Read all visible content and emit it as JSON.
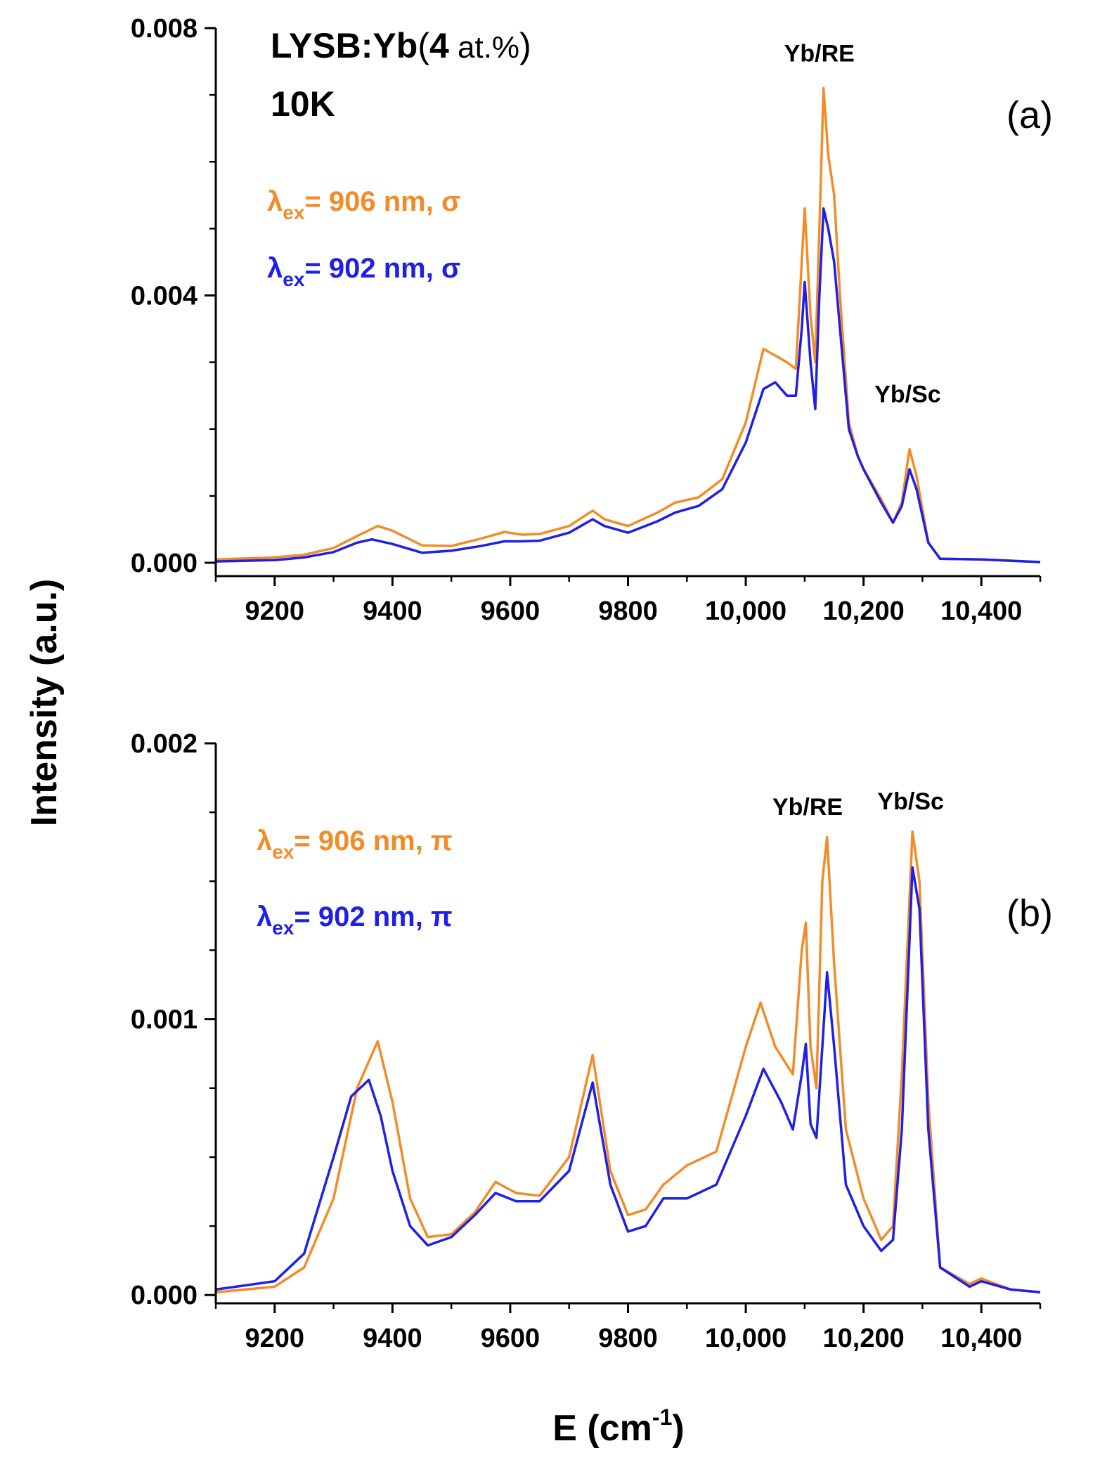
{
  "colors": {
    "orange": "#F28C28",
    "blue": "#1F1FE6",
    "axis": "#000000"
  },
  "figure": {
    "ylabel": "Intensity (a.u.)",
    "xlabel_base": "E (cm",
    "xlabel_sup": "-1",
    "xlabel_close": ")"
  },
  "panels": {
    "a": {
      "tag": "(a)",
      "sample": {
        "name": "LYSB:Yb",
        "conc_open": "(",
        "conc_value": "4",
        "conc_unit": " at.%",
        "conc_close": ")",
        "temperature": "10K"
      },
      "legend": [
        {
          "prefix": "λ",
          "sub": "ex",
          "text": "= 906 nm, σ",
          "color_key": "orange"
        },
        {
          "prefix": "λ",
          "sub": "ex",
          "text": "= 902 nm, σ",
          "color_key": "blue"
        }
      ],
      "peak_labels": [
        {
          "text": "Yb/RE",
          "x": 10125,
          "y": 0.0075
        },
        {
          "text": "Yb/Sc",
          "x": 10275,
          "y": 0.0024
        }
      ]
    },
    "b": {
      "tag": "(b)",
      "legend": [
        {
          "prefix": "λ",
          "sub": "ex",
          "text": "= 906 nm, π",
          "color_key": "orange"
        },
        {
          "prefix": "λ",
          "sub": "ex",
          "text": "= 902 nm, π",
          "color_key": "blue"
        }
      ],
      "peak_labels": [
        {
          "text": "Yb/RE",
          "x": 10105,
          "y": 0.00174
        },
        {
          "text": "Yb/Sc",
          "x": 10280,
          "y": 0.00176
        }
      ]
    }
  },
  "chart_data": [
    {
      "panel": "a",
      "type": "line",
      "title": "",
      "xlabel": "E (cm-1)",
      "ylabel": "Intensity (a.u.)",
      "xlim": [
        9100,
        10500
      ],
      "ylim": [
        -0.0002,
        0.008
      ],
      "xticks": [
        9200,
        9400,
        9600,
        9800,
        10000,
        10200,
        10400
      ],
      "xtick_labels": [
        "9200",
        "9400",
        "9600",
        "9800",
        "10,000",
        "10,200",
        "10,400"
      ],
      "yticks": [
        0.0,
        0.004,
        0.008
      ],
      "ytick_labels": [
        "0.000",
        "0.004",
        "0.008"
      ],
      "series": [
        {
          "name": "λex= 906 nm, σ",
          "color_key": "orange",
          "x": [
            9100,
            9200,
            9250,
            9300,
            9340,
            9375,
            9400,
            9450,
            9500,
            9550,
            9590,
            9620,
            9650,
            9700,
            9740,
            9760,
            9800,
            9850,
            9880,
            9920,
            9960,
            10000,
            10030,
            10050,
            10070,
            10085,
            10095,
            10100,
            10110,
            10118,
            10125,
            10132,
            10140,
            10150,
            10160,
            10175,
            10190,
            10200,
            10230,
            10250,
            10265,
            10278,
            10290,
            10310,
            10330,
            10400,
            10450,
            10500
          ],
          "values": [
            5e-05,
            8e-05,
            0.00012,
            0.00022,
            0.0004,
            0.00055,
            0.00048,
            0.00026,
            0.00025,
            0.00036,
            0.00046,
            0.00042,
            0.00043,
            0.00055,
            0.00078,
            0.00065,
            0.00055,
            0.00075,
            0.0009,
            0.00098,
            0.00125,
            0.0021,
            0.0032,
            0.0031,
            0.003,
            0.0029,
            0.0045,
            0.0053,
            0.0037,
            0.003,
            0.005,
            0.0071,
            0.0061,
            0.0055,
            0.004,
            0.0021,
            0.0016,
            0.0014,
            0.00095,
            0.0006,
            0.0009,
            0.0017,
            0.0013,
            0.0003,
            6e-05,
            5e-05,
            3e-05,
            1e-05
          ]
        },
        {
          "name": "λex= 902 nm, σ",
          "color_key": "blue",
          "x": [
            9100,
            9200,
            9250,
            9300,
            9340,
            9365,
            9400,
            9450,
            9500,
            9550,
            9590,
            9620,
            9650,
            9700,
            9740,
            9760,
            9800,
            9850,
            9880,
            9920,
            9960,
            10000,
            10030,
            10050,
            10070,
            10085,
            10095,
            10100,
            10110,
            10118,
            10125,
            10132,
            10140,
            10150,
            10160,
            10175,
            10190,
            10200,
            10230,
            10250,
            10265,
            10278,
            10290,
            10310,
            10330,
            10400,
            10450,
            10500
          ],
          "values": [
            2e-05,
            4e-05,
            8e-05,
            0.00016,
            0.0003,
            0.00035,
            0.00028,
            0.00015,
            0.00018,
            0.00025,
            0.00032,
            0.00032,
            0.00033,
            0.00045,
            0.00065,
            0.00055,
            0.00045,
            0.00062,
            0.00075,
            0.00085,
            0.0011,
            0.0018,
            0.0026,
            0.0027,
            0.0025,
            0.0025,
            0.0035,
            0.0042,
            0.003,
            0.0023,
            0.004,
            0.0053,
            0.005,
            0.0045,
            0.0035,
            0.002,
            0.0016,
            0.0014,
            0.0009,
            0.0006,
            0.00085,
            0.0014,
            0.0011,
            0.0003,
            6e-05,
            5e-05,
            3e-05,
            1e-05
          ]
        }
      ]
    },
    {
      "panel": "b",
      "type": "line",
      "title": "",
      "xlabel": "E (cm-1)",
      "ylabel": "Intensity (a.u.)",
      "xlim": [
        9100,
        10500
      ],
      "ylim": [
        -3e-05,
        0.002
      ],
      "xticks": [
        9200,
        9400,
        9600,
        9800,
        10000,
        10200,
        10400
      ],
      "xtick_labels": [
        "9200",
        "9400",
        "9600",
        "9800",
        "10,000",
        "10,200",
        "10,400"
      ],
      "yticks": [
        0.0,
        0.001,
        0.002
      ],
      "ytick_labels": [
        "0.000",
        "0.001",
        "0.002"
      ],
      "series": [
        {
          "name": "λex= 906 nm, π",
          "color_key": "orange",
          "x": [
            9100,
            9200,
            9250,
            9300,
            9340,
            9375,
            9400,
            9430,
            9460,
            9500,
            9540,
            9575,
            9610,
            9650,
            9700,
            9740,
            9770,
            9800,
            9830,
            9860,
            9900,
            9950,
            10000,
            10025,
            10050,
            10080,
            10095,
            10102,
            10110,
            10120,
            10130,
            10138,
            10150,
            10170,
            10200,
            10230,
            10250,
            10265,
            10283,
            10295,
            10310,
            10330,
            10380,
            10400,
            10450,
            10500
          ],
          "values": [
            1e-05,
            3e-05,
            0.0001,
            0.00035,
            0.00075,
            0.00092,
            0.0007,
            0.00035,
            0.00021,
            0.00022,
            0.0003,
            0.00041,
            0.00037,
            0.00036,
            0.0005,
            0.00087,
            0.00045,
            0.00029,
            0.00031,
            0.0004,
            0.00047,
            0.00052,
            0.0009,
            0.00106,
            0.0009,
            0.0008,
            0.00125,
            0.00135,
            0.0009,
            0.00075,
            0.0015,
            0.00166,
            0.0012,
            0.0006,
            0.00035,
            0.0002,
            0.00025,
            0.0008,
            0.00168,
            0.0015,
            0.0007,
            0.0001,
            4e-05,
            6e-05,
            2e-05,
            1e-05
          ]
        },
        {
          "name": "λex= 902 nm, π",
          "color_key": "blue",
          "x": [
            9100,
            9200,
            9250,
            9300,
            9330,
            9360,
            9380,
            9400,
            9430,
            9460,
            9500,
            9540,
            9575,
            9610,
            9650,
            9700,
            9740,
            9770,
            9800,
            9830,
            9860,
            9900,
            9950,
            10000,
            10030,
            10060,
            10080,
            10095,
            10102,
            10110,
            10120,
            10130,
            10138,
            10150,
            10170,
            10200,
            10230,
            10250,
            10265,
            10283,
            10295,
            10310,
            10330,
            10380,
            10400,
            10450,
            10500
          ],
          "values": [
            2e-05,
            5e-05,
            0.00015,
            0.0005,
            0.00072,
            0.00078,
            0.00065,
            0.00045,
            0.00025,
            0.00018,
            0.00021,
            0.00029,
            0.00037,
            0.00034,
            0.00034,
            0.00045,
            0.00077,
            0.0004,
            0.00023,
            0.00025,
            0.00035,
            0.00035,
            0.0004,
            0.00065,
            0.00082,
            0.0007,
            0.0006,
            0.0008,
            0.00091,
            0.00062,
            0.00057,
            0.0009,
            0.00117,
            0.0009,
            0.0004,
            0.00025,
            0.00016,
            0.0002,
            0.0006,
            0.00155,
            0.0014,
            0.0006,
            0.0001,
            3e-05,
            5e-05,
            2e-05,
            1e-05
          ]
        }
      ]
    }
  ]
}
